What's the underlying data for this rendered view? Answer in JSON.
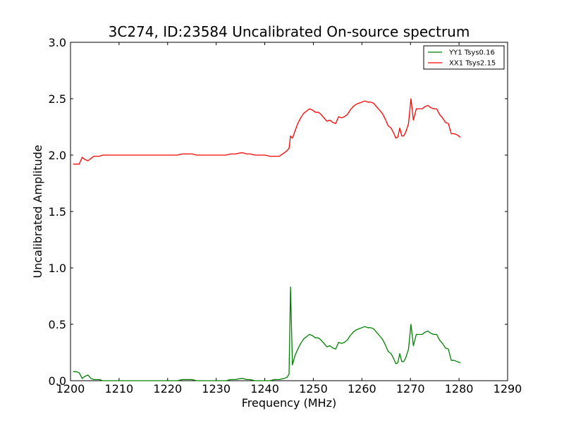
{
  "chart_data": {
    "type": "line",
    "title": "3C274, ID:23584 Uncalibrated On-source spectrum",
    "xlabel": "Frequency (MHz)",
    "ylabel": "Uncalibrated Amplitude",
    "xlim": [
      1200,
      1290
    ],
    "ylim": [
      0.0,
      3.0
    ],
    "x_ticks": [
      "1200",
      "1210",
      "1220",
      "1230",
      "1240",
      "1250",
      "1260",
      "1270",
      "1280",
      "1290"
    ],
    "y_ticks": [
      "0.0",
      "0.5",
      "1.0",
      "1.5",
      "2.0",
      "2.5",
      "3.0"
    ],
    "grid": false,
    "legend_position": "top-right",
    "series": [
      {
        "name": "YY1 Tsys0.16",
        "color": "#008000",
        "x": [
          1200.6,
          1201.2,
          1201.8,
          1202.4,
          1203.0,
          1203.6,
          1204.2,
          1204.8,
          1205.4,
          1206.0,
          1206.6,
          1207.2,
          1208.0,
          1210.0,
          1215.0,
          1220.0,
          1222.0,
          1223.0,
          1224.0,
          1225.0,
          1226.0,
          1228.0,
          1230.0,
          1232.0,
          1233.0,
          1234.0,
          1235.0,
          1235.6,
          1236.2,
          1237.0,
          1238.0,
          1240.0,
          1241.0,
          1242.0,
          1243.0,
          1244.0,
          1244.6,
          1245.0,
          1245.3,
          1245.7,
          1246.2,
          1246.8,
          1247.4,
          1248.0,
          1248.6,
          1249.2,
          1249.8,
          1250.4,
          1251.0,
          1251.6,
          1252.2,
          1252.8,
          1253.4,
          1254.0,
          1254.6,
          1255.2,
          1255.8,
          1256.4,
          1257.0,
          1257.6,
          1258.2,
          1258.8,
          1259.4,
          1260.0,
          1260.6,
          1261.2,
          1261.8,
          1262.4,
          1263.0,
          1263.6,
          1264.2,
          1264.8,
          1265.4,
          1266.0,
          1266.6,
          1267.0,
          1267.4,
          1267.8,
          1268.2,
          1268.6,
          1269.0,
          1269.6,
          1270.1,
          1270.6,
          1271.2,
          1271.8,
          1272.4,
          1273.0,
          1273.6,
          1274.2,
          1274.8,
          1275.4,
          1276.0,
          1276.6,
          1277.2,
          1277.8,
          1278.4,
          1279.0,
          1279.6,
          1280.2
        ],
        "y": [
          0.08,
          0.08,
          0.07,
          0.02,
          0.04,
          0.05,
          0.02,
          0.01,
          0.01,
          0.01,
          0.0,
          0.0,
          0.0,
          0.0,
          0.0,
          0.0,
          0.0,
          0.01,
          0.01,
          0.01,
          0.0,
          0.0,
          0.0,
          0.0,
          0.01,
          0.01,
          0.02,
          0.02,
          0.01,
          0.01,
          0.0,
          0.0,
          0.0,
          0.01,
          0.01,
          0.02,
          0.03,
          0.06,
          0.83,
          0.14,
          0.22,
          0.28,
          0.33,
          0.37,
          0.39,
          0.41,
          0.4,
          0.38,
          0.38,
          0.36,
          0.33,
          0.3,
          0.31,
          0.29,
          0.28,
          0.34,
          0.33,
          0.34,
          0.36,
          0.4,
          0.43,
          0.45,
          0.46,
          0.47,
          0.48,
          0.47,
          0.47,
          0.46,
          0.43,
          0.4,
          0.37,
          0.32,
          0.26,
          0.24,
          0.19,
          0.15,
          0.16,
          0.24,
          0.17,
          0.17,
          0.2,
          0.28,
          0.5,
          0.31,
          0.41,
          0.41,
          0.41,
          0.43,
          0.44,
          0.42,
          0.41,
          0.41,
          0.36,
          0.33,
          0.29,
          0.28,
          0.18,
          0.18,
          0.17,
          0.16
        ]
      },
      {
        "name": "XX1 Tsys2.15",
        "color": "#ff0000",
        "x": [
          1200.6,
          1201.2,
          1201.8,
          1202.4,
          1203.0,
          1203.6,
          1204.2,
          1204.8,
          1205.4,
          1206.0,
          1206.6,
          1207.2,
          1208.0,
          1210.0,
          1215.0,
          1220.0,
          1222.0,
          1223.0,
          1224.0,
          1225.0,
          1226.0,
          1228.0,
          1230.0,
          1232.0,
          1233.0,
          1234.0,
          1235.0,
          1235.6,
          1236.2,
          1237.0,
          1238.0,
          1240.0,
          1241.0,
          1242.0,
          1243.0,
          1244.0,
          1244.6,
          1245.0,
          1245.3,
          1245.7,
          1246.2,
          1246.8,
          1247.4,
          1248.0,
          1248.6,
          1249.2,
          1249.8,
          1250.4,
          1251.0,
          1251.6,
          1252.2,
          1252.8,
          1253.4,
          1254.0,
          1254.6,
          1255.2,
          1255.8,
          1256.4,
          1257.0,
          1257.6,
          1258.2,
          1258.8,
          1259.4,
          1260.0,
          1260.6,
          1261.2,
          1261.8,
          1262.4,
          1263.0,
          1263.6,
          1264.2,
          1264.8,
          1265.4,
          1266.0,
          1266.6,
          1267.0,
          1267.4,
          1267.8,
          1268.2,
          1268.6,
          1269.0,
          1269.6,
          1270.1,
          1270.6,
          1271.2,
          1271.8,
          1272.4,
          1273.0,
          1273.6,
          1274.2,
          1274.8,
          1275.4,
          1276.0,
          1276.6,
          1277.2,
          1277.8,
          1278.4,
          1279.0,
          1279.6,
          1280.2
        ],
        "y": [
          1.92,
          1.92,
          1.92,
          1.98,
          1.96,
          1.95,
          1.97,
          1.99,
          1.99,
          1.99,
          2.0,
          2.0,
          2.0,
          2.0,
          2.0,
          2.0,
          2.0,
          2.01,
          2.01,
          2.01,
          2.0,
          2.0,
          2.0,
          2.0,
          2.01,
          2.01,
          2.02,
          2.02,
          2.01,
          2.01,
          2.0,
          2.0,
          1.99,
          1.99,
          1.99,
          2.02,
          2.04,
          2.06,
          2.17,
          2.15,
          2.21,
          2.28,
          2.33,
          2.37,
          2.39,
          2.41,
          2.4,
          2.38,
          2.38,
          2.36,
          2.33,
          2.3,
          2.31,
          2.29,
          2.28,
          2.34,
          2.33,
          2.34,
          2.36,
          2.4,
          2.43,
          2.45,
          2.46,
          2.47,
          2.48,
          2.47,
          2.47,
          2.46,
          2.43,
          2.4,
          2.37,
          2.32,
          2.26,
          2.24,
          2.19,
          2.15,
          2.16,
          2.24,
          2.17,
          2.17,
          2.2,
          2.28,
          2.5,
          2.31,
          2.41,
          2.41,
          2.41,
          2.43,
          2.44,
          2.42,
          2.41,
          2.41,
          2.36,
          2.33,
          2.29,
          2.28,
          2.19,
          2.19,
          2.18,
          2.16
        ]
      }
    ]
  }
}
